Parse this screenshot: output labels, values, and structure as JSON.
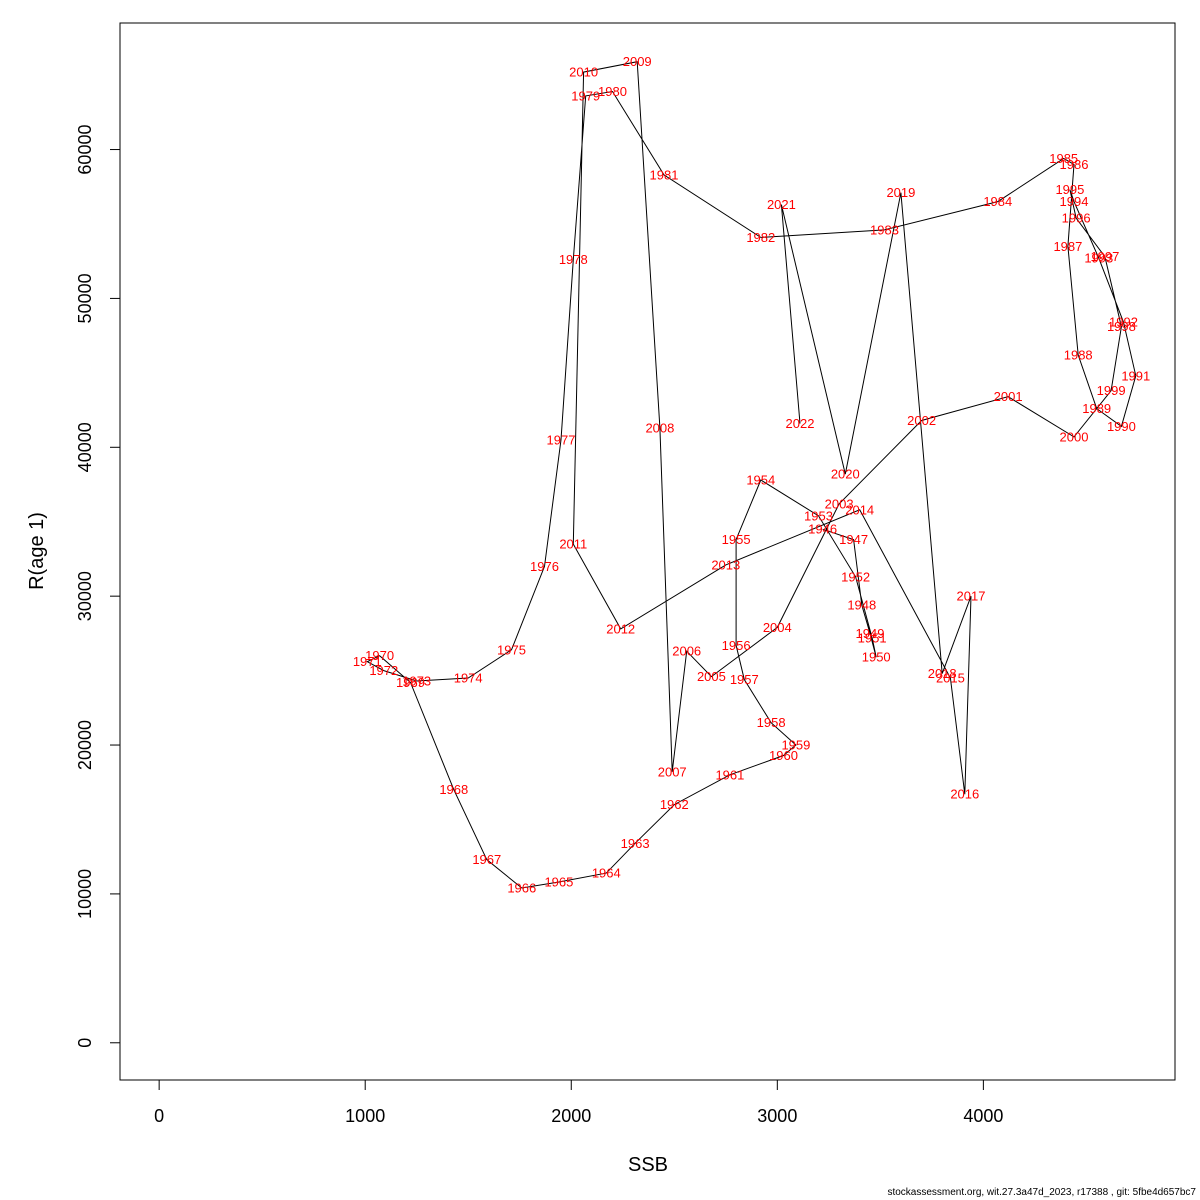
{
  "chart_data": {
    "type": "line",
    "xlabel": "SSB",
    "ylabel": "R(age 1)",
    "xlim": [
      -190,
      4930
    ],
    "ylim": [
      -2500,
      68500
    ],
    "xticks": [
      0,
      1000,
      2000,
      3000,
      4000
    ],
    "yticks": [
      0,
      10000,
      20000,
      30000,
      40000,
      50000,
      60000
    ],
    "grid": false,
    "colors": {
      "line": "#000000",
      "labels": "#ff0000"
    },
    "series": [
      {
        "points": [
          {
            "label": "1946",
            "x": 3220,
            "y": 34500
          },
          {
            "label": "1947",
            "x": 3370,
            "y": 33800
          },
          {
            "label": "1948",
            "x": 3410,
            "y": 29400
          },
          {
            "label": "1949",
            "x": 3450,
            "y": 27500
          },
          {
            "label": "1950",
            "x": 3480,
            "y": 25900
          },
          {
            "label": "1951",
            "x": 3460,
            "y": 27200
          },
          {
            "label": "1952",
            "x": 3380,
            "y": 31300
          },
          {
            "label": "1953",
            "x": 3200,
            "y": 35400
          },
          {
            "label": "1954",
            "x": 2920,
            "y": 37800
          },
          {
            "label": "1955",
            "x": 2800,
            "y": 33800
          },
          {
            "label": "1956",
            "x": 2800,
            "y": 26700
          },
          {
            "label": "1957",
            "x": 2840,
            "y": 24400
          },
          {
            "label": "1958",
            "x": 2970,
            "y": 21500
          },
          {
            "label": "1959",
            "x": 3090,
            "y": 20000
          },
          {
            "label": "1960",
            "x": 3030,
            "y": 19300
          },
          {
            "label": "1961",
            "x": 2770,
            "y": 18000
          },
          {
            "label": "1962",
            "x": 2500,
            "y": 16000
          },
          {
            "label": "1963",
            "x": 2310,
            "y": 13400
          },
          {
            "label": "1964",
            "x": 2170,
            "y": 11400
          },
          {
            "label": "1965",
            "x": 1940,
            "y": 10800
          },
          {
            "label": "1966",
            "x": 1760,
            "y": 10400
          },
          {
            "label": "1967",
            "x": 1590,
            "y": 12300
          },
          {
            "label": "1968",
            "x": 1430,
            "y": 17000
          },
          {
            "label": "1969",
            "x": 1220,
            "y": 24200
          },
          {
            "label": "1970",
            "x": 1070,
            "y": 26000
          },
          {
            "label": "1971",
            "x": 1010,
            "y": 25600
          },
          {
            "label": "1972",
            "x": 1090,
            "y": 25000
          },
          {
            "label": "1973",
            "x": 1250,
            "y": 24300
          },
          {
            "label": "1974",
            "x": 1500,
            "y": 24500
          },
          {
            "label": "1975",
            "x": 1710,
            "y": 26400
          },
          {
            "label": "1976",
            "x": 1870,
            "y": 32000
          },
          {
            "label": "1977",
            "x": 1950,
            "y": 40500
          },
          {
            "label": "1978",
            "x": 2010,
            "y": 52600
          },
          {
            "label": "1979",
            "x": 2070,
            "y": 63600
          },
          {
            "label": "1980",
            "x": 2200,
            "y": 63900
          },
          {
            "label": "1981",
            "x": 2450,
            "y": 58300
          },
          {
            "label": "1982",
            "x": 2920,
            "y": 54100
          },
          {
            "label": "1983",
            "x": 3520,
            "y": 54600
          },
          {
            "label": "1984",
            "x": 4070,
            "y": 56500
          },
          {
            "label": "1985",
            "x": 4390,
            "y": 59400
          },
          {
            "label": "1986",
            "x": 4440,
            "y": 59000
          },
          {
            "label": "1987",
            "x": 4410,
            "y": 53500
          },
          {
            "label": "1988",
            "x": 4460,
            "y": 46200
          },
          {
            "label": "1989",
            "x": 4550,
            "y": 42600
          },
          {
            "label": "1990",
            "x": 4670,
            "y": 41400
          },
          {
            "label": "1991",
            "x": 4740,
            "y": 44800
          },
          {
            "label": "1992",
            "x": 4680,
            "y": 48400
          },
          {
            "label": "1993",
            "x": 4560,
            "y": 52700
          },
          {
            "label": "1994",
            "x": 4440,
            "y": 56500
          },
          {
            "label": "1995",
            "x": 4420,
            "y": 57300
          },
          {
            "label": "1996",
            "x": 4450,
            "y": 55400
          },
          {
            "label": "1997",
            "x": 4590,
            "y": 52800
          },
          {
            "label": "1998",
            "x": 4670,
            "y": 48100
          },
          {
            "label": "1999",
            "x": 4620,
            "y": 43800
          },
          {
            "label": "2000",
            "x": 4440,
            "y": 40700
          },
          {
            "label": "2001",
            "x": 4120,
            "y": 43400
          },
          {
            "label": "2002",
            "x": 3700,
            "y": 41800
          },
          {
            "label": "2003",
            "x": 3300,
            "y": 36200
          },
          {
            "label": "2004",
            "x": 3000,
            "y": 27900
          },
          {
            "label": "2005",
            "x": 2680,
            "y": 24600
          },
          {
            "label": "2006",
            "x": 2560,
            "y": 26300
          },
          {
            "label": "2007",
            "x": 2490,
            "y": 18200
          },
          {
            "label": "2008",
            "x": 2430,
            "y": 41300
          },
          {
            "label": "2009",
            "x": 2320,
            "y": 65900
          },
          {
            "label": "2010",
            "x": 2060,
            "y": 65200
          },
          {
            "label": "2011",
            "x": 2010,
            "y": 33500
          },
          {
            "label": "2012",
            "x": 2240,
            "y": 27800
          },
          {
            "label": "2013",
            "x": 2750,
            "y": 32100
          },
          {
            "label": "2014",
            "x": 3400,
            "y": 35800
          },
          {
            "label": "2015",
            "x": 3840,
            "y": 24500
          },
          {
            "label": "2016",
            "x": 3910,
            "y": 16700
          },
          {
            "label": "2017",
            "x": 3940,
            "y": 30000
          },
          {
            "label": "2018",
            "x": 3800,
            "y": 24800
          },
          {
            "label": "2019",
            "x": 3600,
            "y": 57100
          },
          {
            "label": "2020",
            "x": 3330,
            "y": 38200
          },
          {
            "label": "2021",
            "x": 3020,
            "y": 56300
          },
          {
            "label": "2022",
            "x": 3110,
            "y": 41600
          }
        ]
      }
    ]
  },
  "footer": {
    "credit": "stockassessment.org, wit.27.3a47d_2023, r17388 , git: 5fbe4d657bc7"
  }
}
